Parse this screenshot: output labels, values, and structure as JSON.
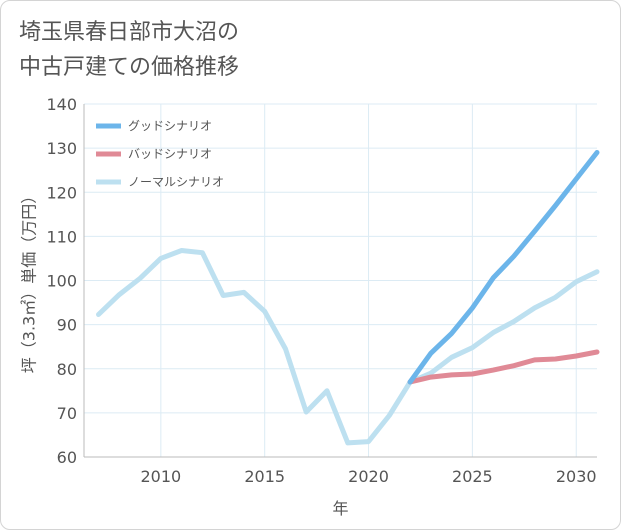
{
  "chart_data": {
    "type": "line",
    "title_lines": [
      "埼玉県春日部市大沼の",
      "中古戸建ての価格推移"
    ],
    "xlabel": "年",
    "ylabel": "坪（3.3㎡）単価（万円）",
    "xlim": [
      2006.3,
      2031
    ],
    "ylim": [
      60,
      140
    ],
    "xticks": [
      2010,
      2015,
      2020,
      2025,
      2030
    ],
    "yticks": [
      60,
      70,
      80,
      90,
      100,
      110,
      120,
      130,
      140
    ],
    "grid": true,
    "legend_position": "top-left",
    "series": [
      {
        "name": "グッドシナリオ",
        "color": "#6cb5ea",
        "x": [
          2022,
          2023,
          2024,
          2025,
          2026,
          2027,
          2028,
          2029,
          2030,
          2031
        ],
        "y": [
          77,
          83.5,
          88,
          93.8,
          100.6,
          105.5,
          111.2,
          117,
          123,
          129
        ]
      },
      {
        "name": "バッドシナリオ",
        "color": "#e08a96",
        "x": [
          2022,
          2023,
          2024,
          2025,
          2026,
          2027,
          2028,
          2029,
          2030,
          2031
        ],
        "y": [
          77,
          78.1,
          78.6,
          78.8,
          79.7,
          80.7,
          82,
          82.2,
          82.9,
          83.8
        ]
      },
      {
        "name": "ノーマルシナリオ",
        "color": "#bde0f0",
        "x": [
          2007,
          2008,
          2009,
          2010,
          2011,
          2012,
          2013,
          2014,
          2015,
          2016,
          2017,
          2018,
          2019,
          2020,
          2021,
          2022,
          2023,
          2024,
          2025,
          2026,
          2027,
          2028,
          2029,
          2030,
          2031
        ],
        "y": [
          92.3,
          96.8,
          100.5,
          105,
          106.8,
          106.3,
          96.6,
          97.3,
          93,
          84.5,
          70.2,
          75,
          63.2,
          63.5,
          69.4,
          77,
          79,
          82.6,
          84.8,
          88.2,
          90.7,
          93.8,
          96.2,
          99.7,
          102
        ]
      }
    ]
  }
}
